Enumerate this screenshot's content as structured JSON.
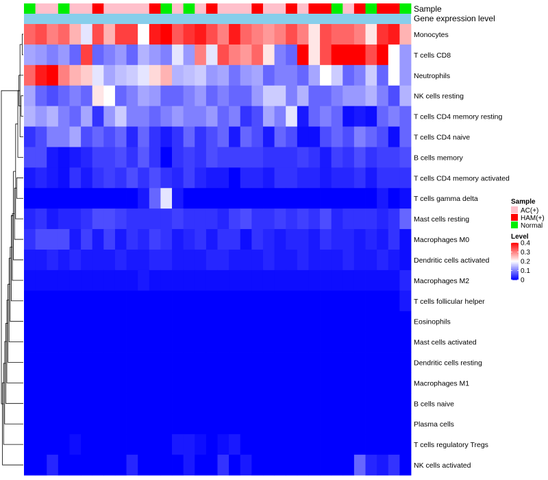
{
  "chart_data": {
    "type": "heatmap",
    "annotation_rows": [
      {
        "label": "Sample"
      },
      {
        "label": "Gene expression level"
      }
    ],
    "sample_groups": [
      "Normal",
      "AC(+)",
      "AC(+)",
      "Normal",
      "AC(+)",
      "AC(+)",
      "HAM(+)",
      "AC(+)",
      "AC(+)",
      "AC(+)",
      "AC(+)",
      "HAM(+)",
      "Normal",
      "AC(+)",
      "Normal",
      "AC(+)",
      "HAM(+)",
      "AC(+)",
      "AC(+)",
      "AC(+)",
      "HAM(+)",
      "AC(+)",
      "AC(+)",
      "HAM(+)",
      "AC(+)",
      "HAM(+)",
      "HAM(+)",
      "Normal",
      "AC(+)",
      "HAM(+)",
      "Normal",
      "HAM(+)",
      "HAM(+)",
      "Normal"
    ],
    "rows": [
      "Monocytes",
      "T cells CD8",
      "Neutrophils",
      "NK cells resting",
      "T cells CD4 memory resting",
      "T cells CD4 naive",
      "B cells memory",
      "T cells CD4 memory activated",
      "T cells gamma delta",
      "Mast cells resting",
      "Macrophages M0",
      "Dendritic cells activated",
      "Macrophages M2",
      "T cells follicular helper",
      "Eosinophils",
      "Mast cells activated",
      "Dendritic cells resting",
      "Macrophages M1",
      "B cells naive",
      "Plasma cells",
      "T cells regulatory  Tregs",
      "NK cells activated"
    ],
    "values": [
      [
        0.32,
        0.34,
        0.3,
        0.32,
        0.26,
        0.18,
        0.34,
        0.26,
        0.35,
        0.35,
        0.2,
        0.38,
        0.4,
        0.33,
        0.36,
        0.38,
        0.34,
        0.3,
        0.38,
        0.32,
        0.3,
        0.28,
        0.3,
        0.34,
        0.3,
        0.22,
        0.34,
        0.32,
        0.32,
        0.3,
        0.22,
        0.36,
        0.38,
        0.26
      ],
      [
        0.13,
        0.12,
        0.1,
        0.12,
        0.08,
        0.35,
        0.08,
        0.1,
        0.12,
        0.08,
        0.14,
        0.12,
        0.1,
        0.18,
        0.12,
        0.3,
        0.18,
        0.34,
        0.3,
        0.28,
        0.32,
        0.22,
        0.1,
        0.08,
        0.4,
        0.22,
        0.34,
        0.4,
        0.4,
        0.4,
        0.34,
        0.4,
        0.2,
        0.12
      ],
      [
        0.32,
        0.38,
        0.4,
        0.3,
        0.26,
        0.24,
        0.18,
        0.13,
        0.15,
        0.16,
        0.18,
        0.23,
        0.26,
        0.14,
        0.15,
        0.16,
        0.12,
        0.13,
        0.09,
        0.12,
        0.13,
        0.08,
        0.1,
        0.1,
        0.08,
        0.13,
        0.2,
        0.16,
        0.08,
        0.1,
        0.16,
        0.08,
        0.2,
        0.12
      ],
      [
        0.13,
        0.08,
        0.06,
        0.08,
        0.1,
        0.08,
        0.22,
        0.2,
        0.08,
        0.1,
        0.13,
        0.12,
        0.08,
        0.08,
        0.1,
        0.12,
        0.08,
        0.1,
        0.08,
        0.08,
        0.12,
        0.16,
        0.16,
        0.1,
        0.14,
        0.08,
        0.08,
        0.1,
        0.12,
        0.12,
        0.14,
        0.1,
        0.06,
        0.14
      ],
      [
        0.14,
        0.12,
        0.14,
        0.1,
        0.08,
        0.13,
        0.04,
        0.12,
        0.16,
        0.1,
        0.1,
        0.08,
        0.1,
        0.12,
        0.1,
        0.1,
        0.12,
        0.08,
        0.1,
        0.04,
        0.06,
        0.13,
        0.1,
        0.18,
        0.02,
        0.08,
        0.1,
        0.08,
        0.01,
        0.02,
        0.01,
        0.08,
        0.1,
        0.08
      ],
      [
        0.04,
        0.06,
        0.1,
        0.1,
        0.13,
        0.06,
        0.08,
        0.06,
        0.08,
        0.03,
        0.08,
        0.04,
        0.02,
        0.04,
        0.08,
        0.04,
        0.06,
        0.08,
        0.02,
        0.08,
        0.06,
        0.02,
        0.08,
        0.06,
        0.01,
        0.01,
        0.06,
        0.08,
        0.06,
        0.1,
        0.08,
        0.06,
        0.01,
        0.08
      ],
      [
        0.06,
        0.06,
        0.02,
        0.01,
        0.02,
        0.03,
        0.05,
        0.05,
        0.06,
        0.04,
        0.07,
        0.04,
        0.0,
        0.04,
        0.05,
        0.04,
        0.06,
        0.05,
        0.05,
        0.05,
        0.05,
        0.04,
        0.04,
        0.04,
        0.05,
        0.04,
        0.02,
        0.05,
        0.04,
        0.06,
        0.04,
        0.05,
        0.05,
        0.06
      ],
      [
        0.02,
        0.03,
        0.02,
        0.01,
        0.04,
        0.02,
        0.04,
        0.05,
        0.04,
        0.06,
        0.04,
        0.06,
        0.04,
        0.03,
        0.05,
        0.03,
        0.02,
        0.02,
        0.0,
        0.03,
        0.03,
        0.02,
        0.04,
        0.04,
        0.03,
        0.03,
        0.02,
        0.03,
        0.03,
        0.04,
        0.02,
        0.04,
        0.04,
        0.04
      ],
      [
        0.0,
        0.0,
        0.0,
        0.0,
        0.0,
        0.0,
        0.0,
        0.0,
        0.0,
        0.0,
        0.02,
        0.08,
        0.18,
        0.02,
        0.0,
        0.0,
        0.0,
        0.0,
        0.0,
        0.0,
        0.0,
        0.0,
        0.0,
        0.0,
        0.0,
        0.0,
        0.0,
        0.0,
        0.0,
        0.0,
        0.0,
        0.02,
        0.0,
        0.01
      ],
      [
        0.03,
        0.04,
        0.02,
        0.03,
        0.03,
        0.04,
        0.06,
        0.06,
        0.05,
        0.04,
        0.04,
        0.04,
        0.04,
        0.05,
        0.04,
        0.04,
        0.04,
        0.03,
        0.05,
        0.06,
        0.04,
        0.04,
        0.05,
        0.04,
        0.05,
        0.04,
        0.06,
        0.03,
        0.04,
        0.04,
        0.04,
        0.03,
        0.04,
        0.08
      ],
      [
        0.04,
        0.06,
        0.06,
        0.06,
        0.02,
        0.05,
        0.02,
        0.05,
        0.02,
        0.04,
        0.03,
        0.05,
        0.04,
        0.02,
        0.03,
        0.04,
        0.02,
        0.04,
        0.04,
        0.01,
        0.04,
        0.03,
        0.02,
        0.03,
        0.03,
        0.02,
        0.04,
        0.03,
        0.03,
        0.02,
        0.03,
        0.02,
        0.04,
        0.01
      ],
      [
        0.02,
        0.02,
        0.03,
        0.02,
        0.03,
        0.02,
        0.02,
        0.02,
        0.03,
        0.02,
        0.02,
        0.03,
        0.03,
        0.02,
        0.02,
        0.02,
        0.03,
        0.03,
        0.02,
        0.02,
        0.02,
        0.03,
        0.02,
        0.02,
        0.03,
        0.02,
        0.02,
        0.02,
        0.03,
        0.02,
        0.02,
        0.03,
        0.02,
        0.01
      ],
      [
        0.01,
        0.01,
        0.01,
        0.01,
        0.01,
        0.01,
        0.01,
        0.01,
        0.01,
        0.01,
        0.02,
        0.01,
        0.01,
        0.01,
        0.01,
        0.01,
        0.01,
        0.01,
        0.01,
        0.01,
        0.01,
        0.01,
        0.01,
        0.01,
        0.01,
        0.01,
        0.01,
        0.01,
        0.01,
        0.01,
        0.01,
        0.01,
        0.01,
        0.03
      ],
      [
        0.0,
        0.0,
        0.0,
        0.0,
        0.0,
        0.0,
        0.0,
        0.0,
        0.0,
        0.0,
        0.0,
        0.0,
        0.0,
        0.0,
        0.0,
        0.0,
        0.0,
        0.0,
        0.0,
        0.0,
        0.0,
        0.0,
        0.0,
        0.0,
        0.0,
        0.0,
        0.0,
        0.0,
        0.0,
        0.0,
        0.0,
        0.0,
        0.0,
        0.02
      ],
      [
        0.0,
        0.0,
        0.0,
        0.0,
        0.0,
        0.0,
        0.0,
        0.0,
        0.0,
        0.0,
        0.0,
        0.0,
        0.0,
        0.0,
        0.0,
        0.0,
        0.0,
        0.0,
        0.0,
        0.0,
        0.0,
        0.0,
        0.0,
        0.0,
        0.0,
        0.0,
        0.0,
        0.0,
        0.0,
        0.0,
        0.0,
        0.0,
        0.0,
        0.0
      ],
      [
        0.0,
        0.0,
        0.0,
        0.0,
        0.0,
        0.0,
        0.0,
        0.0,
        0.0,
        0.0,
        0.0,
        0.0,
        0.0,
        0.0,
        0.0,
        0.0,
        0.0,
        0.0,
        0.0,
        0.0,
        0.0,
        0.0,
        0.0,
        0.0,
        0.0,
        0.0,
        0.0,
        0.0,
        0.0,
        0.0,
        0.0,
        0.0,
        0.0,
        0.0
      ],
      [
        0.0,
        0.0,
        0.0,
        0.0,
        0.0,
        0.0,
        0.0,
        0.0,
        0.0,
        0.0,
        0.0,
        0.0,
        0.0,
        0.0,
        0.0,
        0.0,
        0.0,
        0.0,
        0.0,
        0.0,
        0.0,
        0.0,
        0.0,
        0.0,
        0.0,
        0.0,
        0.0,
        0.0,
        0.0,
        0.0,
        0.0,
        0.0,
        0.0,
        0.0
      ],
      [
        0.0,
        0.0,
        0.0,
        0.0,
        0.0,
        0.0,
        0.0,
        0.0,
        0.0,
        0.0,
        0.0,
        0.0,
        0.0,
        0.0,
        0.0,
        0.0,
        0.0,
        0.0,
        0.0,
        0.0,
        0.0,
        0.0,
        0.0,
        0.0,
        0.0,
        0.0,
        0.0,
        0.0,
        0.0,
        0.0,
        0.0,
        0.0,
        0.0,
        0.0
      ],
      [
        0.0,
        0.0,
        0.0,
        0.0,
        0.0,
        0.0,
        0.0,
        0.0,
        0.0,
        0.0,
        0.0,
        0.0,
        0.0,
        0.0,
        0.0,
        0.0,
        0.0,
        0.0,
        0.0,
        0.0,
        0.0,
        0.0,
        0.0,
        0.0,
        0.0,
        0.0,
        0.0,
        0.0,
        0.0,
        0.0,
        0.0,
        0.0,
        0.0,
        0.0
      ],
      [
        0.0,
        0.0,
        0.0,
        0.0,
        0.0,
        0.0,
        0.0,
        0.0,
        0.0,
        0.0,
        0.0,
        0.0,
        0.0,
        0.0,
        0.0,
        0.0,
        0.0,
        0.0,
        0.0,
        0.0,
        0.0,
        0.0,
        0.0,
        0.0,
        0.0,
        0.0,
        0.0,
        0.0,
        0.0,
        0.0,
        0.0,
        0.0,
        0.0,
        0.0
      ],
      [
        0.0,
        0.0,
        0.0,
        0.0,
        0.01,
        0.0,
        0.0,
        0.0,
        0.0,
        0.0,
        0.0,
        0.0,
        0.0,
        0.02,
        0.02,
        0.01,
        0.0,
        0.01,
        0.02,
        0.0,
        0.0,
        0.0,
        0.0,
        0.0,
        0.0,
        0.0,
        0.0,
        0.0,
        0.0,
        0.0,
        0.0,
        0.0,
        0.0,
        0.0
      ],
      [
        0.0,
        0.0,
        0.03,
        0.0,
        0.0,
        0.0,
        0.0,
        0.0,
        0.0,
        0.03,
        0.0,
        0.0,
        0.0,
        0.0,
        0.02,
        0.0,
        0.0,
        0.04,
        0.0,
        0.02,
        0.0,
        0.0,
        0.0,
        0.0,
        0.0,
        0.0,
        0.0,
        0.0,
        0.0,
        0.08,
        0.03,
        0.02,
        0.04,
        0.0
      ]
    ],
    "legend": {
      "sample_title": "Sample",
      "sample_entries": [
        {
          "label": "AC(+)",
          "color": "#ffc0cb"
        },
        {
          "label": "HAM(+)",
          "color": "#ff0000"
        },
        {
          "label": "Normal",
          "color": "#00ee00"
        }
      ],
      "level_title": "Level",
      "level_ticks": [
        0.4,
        0.3,
        0.2,
        0.1,
        0
      ],
      "level_range": [
        0,
        0.4
      ]
    },
    "colors": {
      "low": "#0000ff",
      "mid": "#ffffff",
      "high": "#ff0000",
      "expression_bar": "#87ceeb"
    },
    "row_dendrogram": [
      [
        0,
        1
      ],
      [
        3,
        4
      ],
      [
        22,
        5
      ],
      [
        23,
        2
      ],
      [
        24,
        6
      ],
      [
        7,
        8
      ],
      [
        26,
        9
      ],
      [
        27,
        10
      ],
      [
        28,
        11
      ],
      [
        29,
        12
      ],
      [
        30,
        13
      ],
      [
        31,
        14
      ],
      [
        32,
        15
      ],
      [
        33,
        16
      ],
      [
        34,
        17
      ],
      [
        35,
        18
      ],
      [
        36,
        19
      ],
      [
        37,
        20
      ],
      [
        38,
        21
      ],
      [
        25,
        39
      ]
    ]
  }
}
